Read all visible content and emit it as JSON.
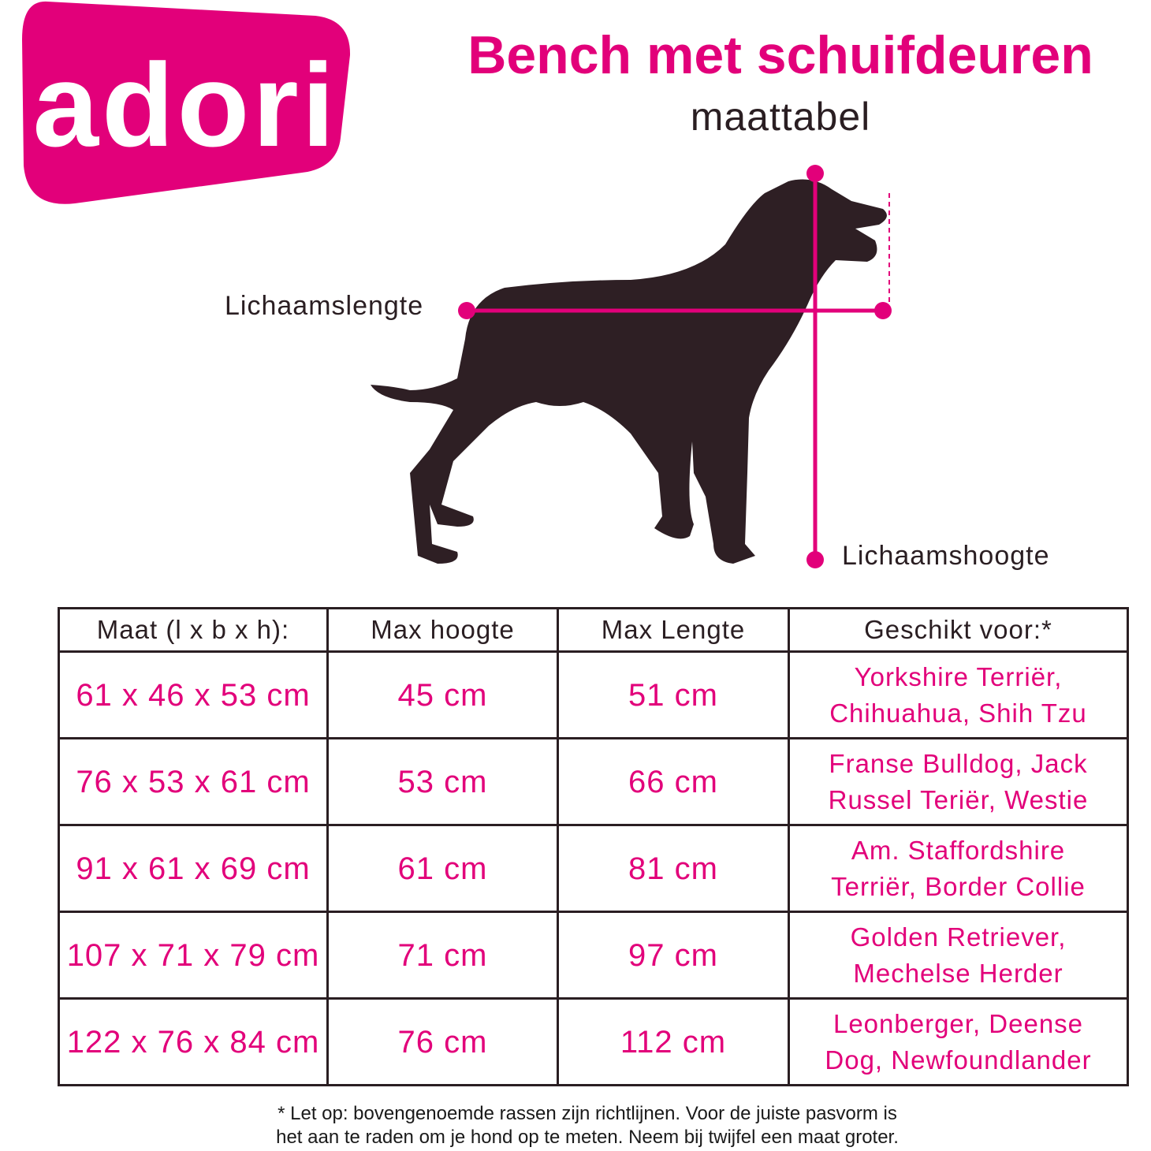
{
  "brand": {
    "logo_text": "adori",
    "color": "#e2007a"
  },
  "header": {
    "title": "Bench met schuifdeuren",
    "subtitle": "maattabel"
  },
  "diagram": {
    "length_label": "Lichaamslengte",
    "height_label": "Lichaamshoogte",
    "dog_color": "#2e1f24",
    "line_color": "#e2007a"
  },
  "table": {
    "headers": [
      "Maat (l x b x h):",
      "Max hoogte",
      "Max Lengte",
      "Geschikt voor:*"
    ],
    "rows": [
      {
        "size": "61 x 46 x 53 cm",
        "max_height": "45 cm",
        "max_length": "51 cm",
        "breeds": [
          "Yorkshire Terriër,",
          "Chihuahua, Shih Tzu"
        ]
      },
      {
        "size": "76 x 53 x 61 cm",
        "max_height": "53 cm",
        "max_length": "66 cm",
        "breeds": [
          "Franse Bulldog, Jack",
          "Russel Teriër, Westie"
        ]
      },
      {
        "size": "91 x 61 x 69 cm",
        "max_height": "61 cm",
        "max_length": "81 cm",
        "breeds": [
          "Am. Staffordshire",
          "Terriër, Border Collie"
        ]
      },
      {
        "size": "107 x 71 x 79 cm",
        "max_height": "71 cm",
        "max_length": "97 cm",
        "breeds": [
          "Golden Retriever,",
          "Mechelse Herder"
        ]
      },
      {
        "size": "122 x 76 x 84 cm",
        "max_height": "76 cm",
        "max_length": "112 cm",
        "breeds": [
          "Leonberger, Deense",
          "Dog, Newfoundlander"
        ]
      }
    ]
  },
  "footnote": [
    "* Let op: bovengenoemde rassen zijn richtlijnen. Voor de juiste pasvorm is",
    "het aan te raden om je hond op te meten. Neem bij twijfel een maat groter."
  ]
}
